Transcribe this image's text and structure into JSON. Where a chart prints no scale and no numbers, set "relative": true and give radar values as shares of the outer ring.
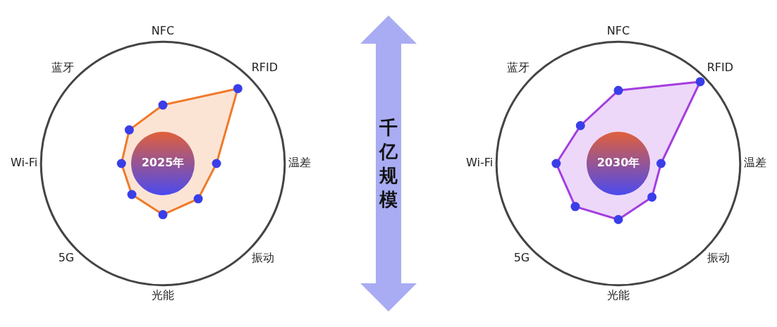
{
  "chart_data": [
    {
      "type": "radar",
      "title": "2025年",
      "relative": true,
      "categories": [
        "NFC",
        "RFID",
        "温差",
        "振动",
        "光能",
        "5G",
        "Wi-Fi",
        "蓝牙"
      ],
      "series": [
        {
          "color": "#f07a2a",
          "values": [
            0.48,
            0.87,
            0.44,
            0.41,
            0.42,
            0.36,
            0.34,
            0.39
          ]
        }
      ],
      "marker": "circle",
      "annotations": [
        "千亿规模"
      ]
    },
    {
      "type": "radar",
      "title": "2030年",
      "relative": true,
      "categories": [
        "NFC",
        "RFID",
        "温差",
        "振动",
        "光能",
        "5G",
        "Wi-Fi",
        "蓝牙"
      ],
      "series": [
        {
          "color": "#a33ee0",
          "values": [
            0.6,
            0.95,
            0.35,
            0.39,
            0.46,
            0.5,
            0.51,
            0.44
          ]
        }
      ],
      "marker": "circle"
    }
  ]
}
